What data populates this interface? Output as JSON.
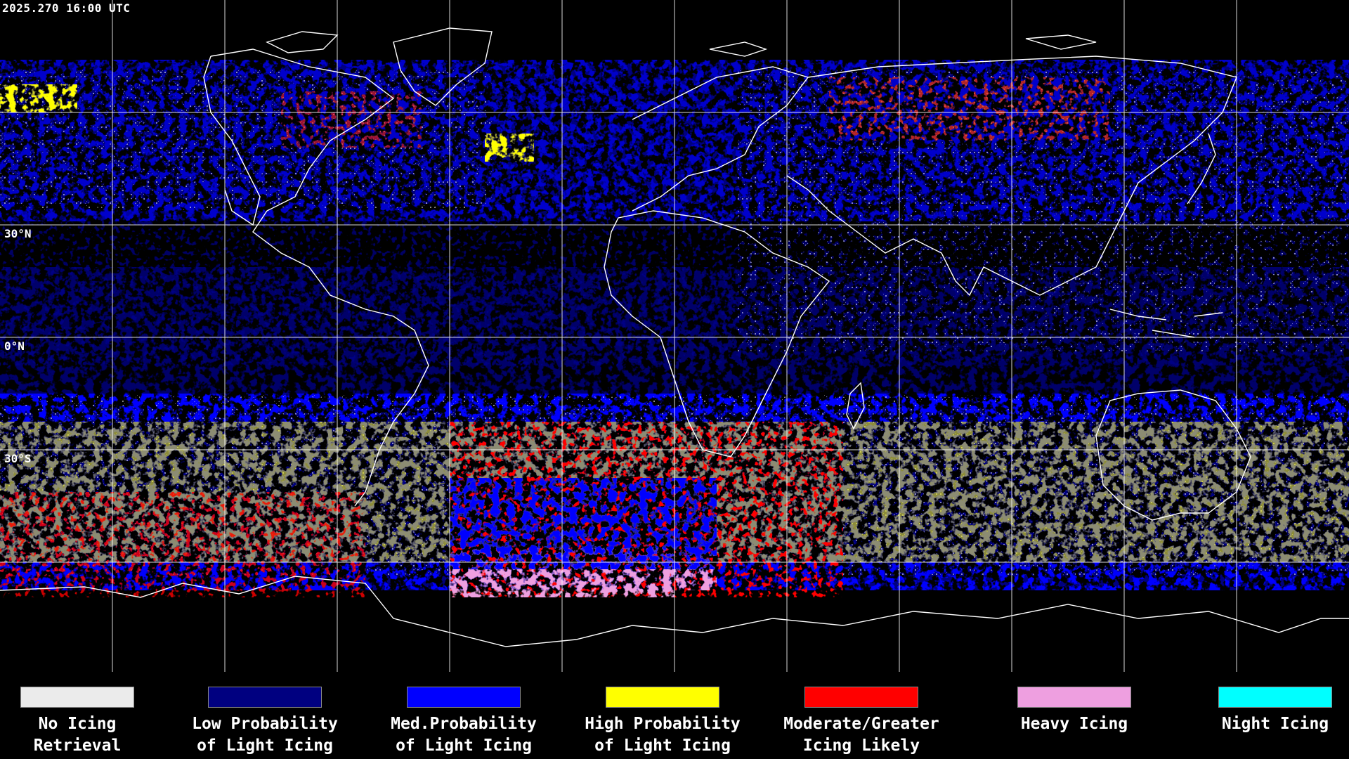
{
  "header": {
    "timestamp": "2025.270 16:00 UTC"
  },
  "latitude_labels": [
    {
      "id": "lat-30n",
      "text": "30°N"
    },
    {
      "id": "lat-0n",
      "text": "0°N"
    },
    {
      "id": "lat-30s",
      "text": "30°S"
    }
  ],
  "legend": {
    "items": [
      {
        "label": "No Icing\nRetrieval",
        "color": "#ebebeb"
      },
      {
        "label": "Low Probability\nof Light Icing",
        "color": "#000080"
      },
      {
        "label": "Med.Probability\nof Light Icing",
        "color": "#0000ff"
      },
      {
        "label": "High Probability\nof Light Icing",
        "color": "#ffff00"
      },
      {
        "label": "Moderate/Greater\nIcing Likely",
        "color": "#ff0000"
      },
      {
        "label": "Heavy Icing",
        "color": "#ee9fe0"
      },
      {
        "label": "Night Icing",
        "color": "#00ffff"
      }
    ]
  },
  "colors": {
    "background": "#000000",
    "grid": "#ffffff",
    "coastline": "#ffffff"
  }
}
